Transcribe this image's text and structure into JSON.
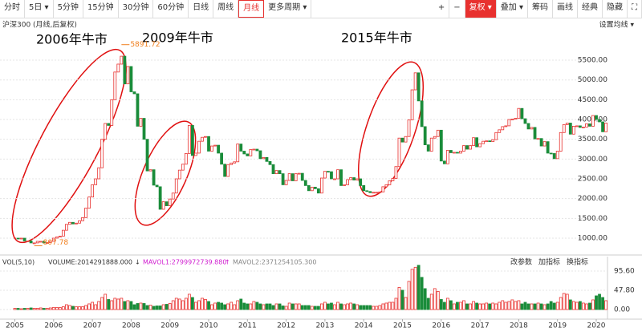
{
  "toolbar": {
    "left": [
      "分时",
      "5日 ▾",
      "5分钟",
      "15分钟",
      "30分钟",
      "60分钟",
      "日线",
      "周线",
      "月线",
      "更多周期 ▾"
    ],
    "right": [
      "+",
      "−",
      "复权 ▾",
      "叠加 ▾",
      "筹码",
      "画线",
      "经典",
      "隐藏",
      "⛶"
    ]
  },
  "chart_data": {
    "type": "candlestick",
    "title": "沪深300 (月线,后复权)",
    "settings_label": "设置均线 ▾",
    "annotations": [
      "2006年牛市",
      "2009年牛市",
      "2015年牛市"
    ],
    "high_label": 5891.72,
    "low_label": 807.78,
    "years": [
      "2005",
      "2006",
      "2007",
      "2008",
      "2009",
      "2010",
      "2011",
      "2012",
      "2013",
      "2014",
      "2015",
      "2016",
      "2017",
      "2018",
      "2019",
      "2020"
    ],
    "up_color": "#e8312f",
    "down_color": "#1a8c3a",
    "ylim": [
      700,
      6200
    ],
    "yticks": [
      {
        "value": 5500,
        "label": "5500.00"
      },
      {
        "value": 5000,
        "label": "5000.00"
      },
      {
        "value": 4500,
        "label": "4500.00"
      },
      {
        "value": 4000,
        "label": "4000.00"
      },
      {
        "value": 3500,
        "label": "3500.00"
      },
      {
        "value": 3000,
        "label": "3000.00"
      },
      {
        "value": 2500,
        "label": "2500.00"
      },
      {
        "value": 2000,
        "label": "2000.00"
      },
      {
        "value": 1500,
        "label": "1500.00"
      },
      {
        "value": 1000,
        "label": "1000.00"
      }
    ],
    "grid": true,
    "closes": [
      1000,
      990,
      1000,
      930,
      930,
      880,
      880,
      920,
      920,
      880,
      890,
      920,
      1000,
      1030,
      1050,
      1200,
      1350,
      1400,
      1360,
      1380,
      1440,
      1520,
      1760,
      2040,
      2350,
      2500,
      2780,
      3500,
      3900,
      3850,
      4500,
      5200,
      5400,
      5600,
      4900,
      5340,
      4700,
      4650,
      3830,
      4030,
      3500,
      2700,
      2730,
      2340,
      2300,
      1730,
      1920,
      1820,
      1990,
      2140,
      2500,
      2720,
      2870,
      3140,
      3850,
      3090,
      3150,
      3450,
      3550,
      3570,
      3200,
      3330,
      3350,
      3150,
      2870,
      2560,
      2860,
      2900,
      2930,
      3380,
      3200,
      3130,
      3080,
      3240,
      3250,
      3210,
      3010,
      3040,
      2940,
      2860,
      2630,
      2710,
      2630,
      2350,
      2460,
      2630,
      2450,
      2630,
      2640,
      2460,
      2330,
      2200,
      2290,
      2250,
      2140,
      2520,
      2690,
      2680,
      2500,
      2500,
      2730,
      2330,
      2350,
      2480,
      2530,
      2470,
      2500,
      2330,
      2200,
      2180,
      2150,
      2160,
      2160,
      2170,
      2300,
      2350,
      2450,
      2510,
      2810,
      3530,
      3430,
      3570,
      3990,
      4750,
      5180,
      4470,
      3820,
      3360,
      3200,
      3530,
      3570,
      3730,
      2950,
      2880,
      3220,
      3160,
      3170,
      3150,
      3200,
      3340,
      3250,
      3340,
      3540,
      3310,
      3390,
      3450,
      3460,
      3440,
      3490,
      3670,
      3740,
      3820,
      3840,
      4000,
      4010,
      4030,
      4280,
      4020,
      3900,
      3760,
      3800,
      3510,
      3520,
      3330,
      3440,
      3150,
      3140,
      3010,
      3200,
      3670,
      3870,
      3910,
      3630,
      3830,
      3840,
      3800,
      3810,
      3890,
      3830,
      4100,
      4000,
      3940,
      3690,
      3910
    ],
    "volume": {
      "header": [
        "VOL(5,10)",
        "VOLUME:2014291888.000",
        "↓",
        "MAVOL1:2799972739.880",
        "↑",
        "MAVOL2:2371254105.300"
      ],
      "buttons": [
        "改参数",
        "加指标",
        "换指标"
      ],
      "ylim": [
        0,
        116
      ],
      "yticks": [
        {
          "value": 95.6,
          "label": "95.60"
        },
        {
          "value": 47.8,
          "label": "47.80"
        },
        {
          "value": 0,
          "label": "0.00"
        }
      ],
      "values": [
        3,
        3,
        2,
        3,
        3,
        4,
        3,
        3,
        4,
        3,
        3,
        4,
        5,
        5,
        5,
        7,
        12,
        10,
        8,
        7,
        7,
        7,
        10,
        14,
        18,
        12,
        20,
        30,
        38,
        25,
        22,
        28,
        26,
        28,
        20,
        22,
        20,
        12,
        15,
        16,
        15,
        10,
        11,
        8,
        9,
        9,
        12,
        13,
        15,
        22,
        28,
        26,
        22,
        28,
        38,
        30,
        18,
        22,
        28,
        25,
        20,
        12,
        16,
        18,
        16,
        12,
        14,
        18,
        12,
        22,
        26,
        16,
        14,
        14,
        20,
        18,
        14,
        12,
        14,
        14,
        10,
        14,
        14,
        9,
        8,
        16,
        14,
        14,
        14,
        10,
        10,
        10,
        8,
        8,
        8,
        14,
        18,
        14,
        16,
        12,
        18,
        14,
        12,
        14,
        16,
        14,
        12,
        10,
        10,
        10,
        10,
        8,
        8,
        10,
        14,
        16,
        18,
        18,
        28,
        55,
        48,
        30,
        70,
        100,
        105,
        110,
        80,
        52,
        28,
        38,
        52,
        45,
        25,
        18,
        28,
        22,
        14,
        18,
        18,
        22,
        14,
        14,
        20,
        16,
        14,
        14,
        16,
        14,
        16,
        14,
        18,
        22,
        18,
        20,
        24,
        20,
        22,
        14,
        18,
        14,
        14,
        14,
        16,
        14,
        12,
        14,
        20,
        16,
        18,
        30,
        40,
        38,
        24,
        20,
        18,
        20,
        16,
        14,
        16,
        24,
        34,
        38,
        30,
        22
      ]
    }
  }
}
